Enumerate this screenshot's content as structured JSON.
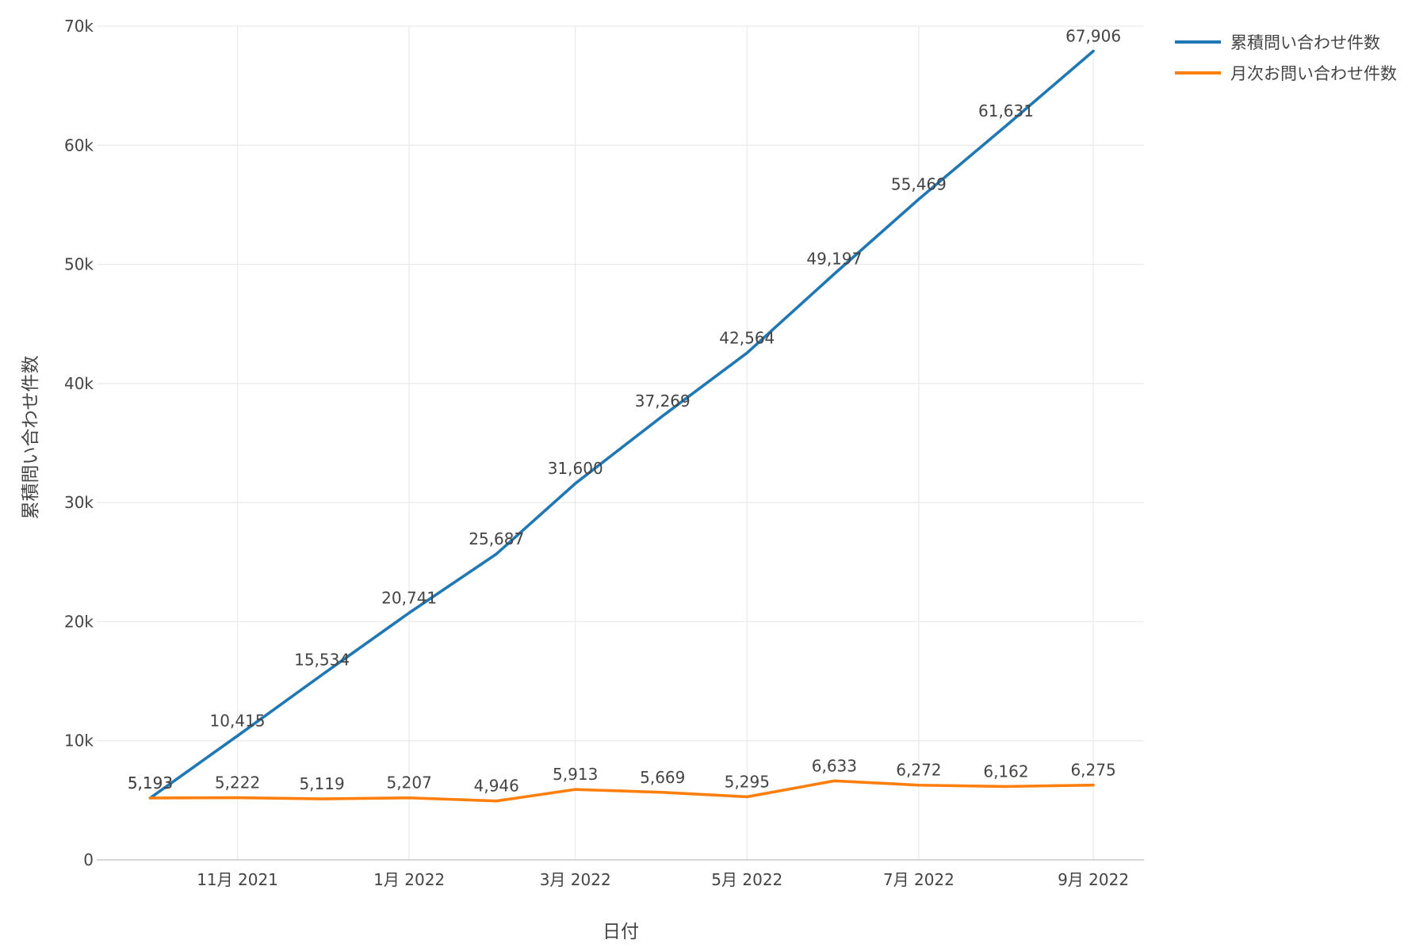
{
  "chart_data": {
    "type": "line",
    "x": [
      "2021-10-01",
      "2021-11-01",
      "2021-12-01",
      "2022-01-01",
      "2022-02-01",
      "2022-03-01",
      "2022-04-01",
      "2022-05-01",
      "2022-06-01",
      "2022-07-01",
      "2022-08-01",
      "2022-09-01"
    ],
    "series": [
      {
        "name": "累積問い合わせ件数",
        "color": "#1f77b4",
        "values": [
          5193,
          10415,
          15534,
          20741,
          25687,
          31600,
          37269,
          42564,
          49197,
          55469,
          61631,
          67906
        ],
        "labels": [
          "5,193",
          "10,415",
          "15,534",
          "20,741",
          "25,687",
          "31,600",
          "37,269",
          "42,564",
          "49,197",
          "55,469",
          "61,631",
          "67,906"
        ]
      },
      {
        "name": "月次お問い合わせ件数",
        "color": "#ff7f0e",
        "values": [
          5193,
          5222,
          5119,
          5207,
          4946,
          5913,
          5669,
          5295,
          6633,
          6272,
          6162,
          6275
        ],
        "labels": [
          "5,193",
          "5,222",
          "5,119",
          "5,207",
          "4,946",
          "5,913",
          "5,669",
          "5,295",
          "6,633",
          "6,272",
          "6,162",
          "6,275"
        ]
      }
    ],
    "xticks": [
      {
        "date": "2021-11-01",
        "label": "11月 2021"
      },
      {
        "date": "2022-01-01",
        "label": "1月 2022"
      },
      {
        "date": "2022-03-01",
        "label": "3月 2022"
      },
      {
        "date": "2022-05-01",
        "label": "5月 2022"
      },
      {
        "date": "2022-07-01",
        "label": "7月 2022"
      },
      {
        "date": "2022-09-01",
        "label": "9月 2022"
      }
    ],
    "yticks": [
      {
        "value": 0,
        "label": "0"
      },
      {
        "value": 10000,
        "label": "10k"
      },
      {
        "value": 20000,
        "label": "20k"
      },
      {
        "value": 30000,
        "label": "30k"
      },
      {
        "value": 40000,
        "label": "40k"
      },
      {
        "value": 50000,
        "label": "50k"
      },
      {
        "value": 60000,
        "label": "60k"
      },
      {
        "value": 70000,
        "label": "70k"
      }
    ],
    "title": "",
    "xlabel": "日付",
    "ylabel": "累積問い合わせ件数",
    "ylim": [
      0,
      70000
    ],
    "xlim": [
      "2021-09-12",
      "2022-09-19"
    ],
    "grid": true,
    "legend": "top-right"
  }
}
